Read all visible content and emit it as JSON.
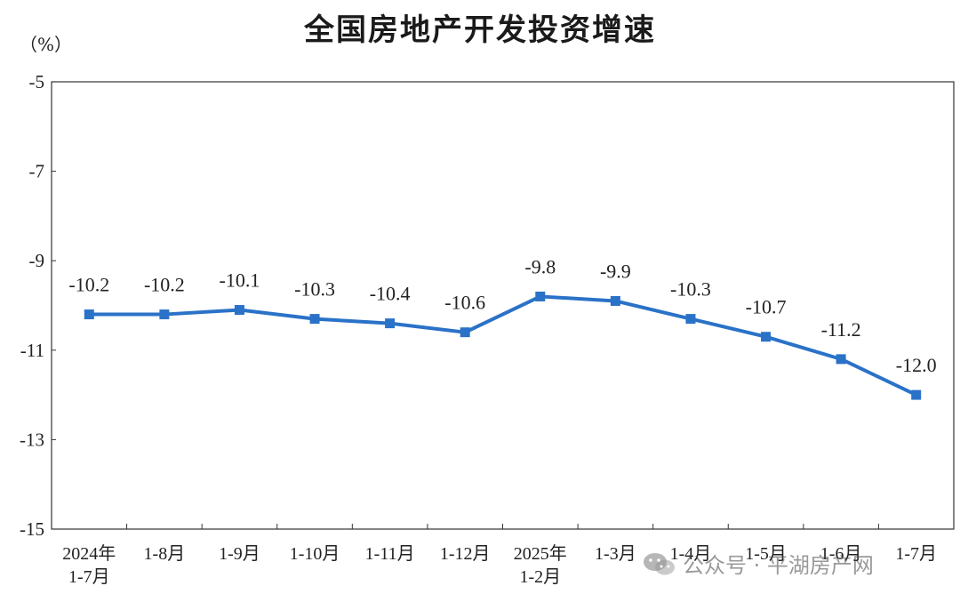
{
  "chart_data": {
    "type": "line",
    "title": "全国房地产开发投资增速",
    "unit_label": "（%）",
    "ylim": [
      -15,
      -5
    ],
    "yticks": [
      -5,
      -7,
      -9,
      -11,
      -13,
      -15
    ],
    "categories": [
      [
        "2024年",
        "1-7月"
      ],
      [
        "1-8月"
      ],
      [
        "1-9月"
      ],
      [
        "1-10月"
      ],
      [
        "1-11月"
      ],
      [
        "1-12月"
      ],
      [
        "2025年",
        "1-2月"
      ],
      [
        "1-3月"
      ],
      [
        "1-4月"
      ],
      [
        "1-5月"
      ],
      [
        "1-6月"
      ],
      [
        "1-7月"
      ]
    ],
    "values": [
      -10.2,
      -10.2,
      -10.1,
      -10.3,
      -10.4,
      -10.6,
      -9.8,
      -9.9,
      -10.3,
      -10.7,
      -11.2,
      -12.0
    ],
    "data_labels": [
      "-10.2",
      "-10.2",
      "-10.1",
      "-10.3",
      "-10.4",
      "-10.6",
      "-9.8",
      "-9.9",
      "-10.3",
      "-10.7",
      "-11.2",
      "-12.0"
    ],
    "line_color": "#2a72c8",
    "grid": false,
    "legend": "none"
  },
  "watermark": {
    "text": "公众号 · 平湖房产网",
    "icon": "wechat-icon"
  }
}
